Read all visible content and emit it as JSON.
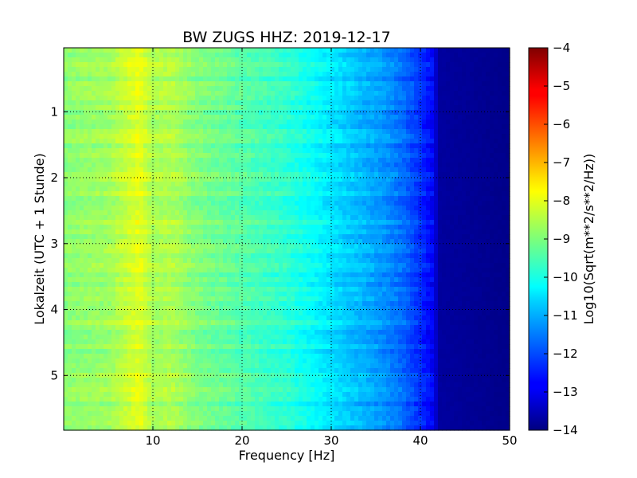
{
  "chart_data": {
    "type": "heatmap",
    "title": "BW ZUGS HHZ: 2019-12-17",
    "xlabel": "Frequency [Hz]",
    "ylabel": "Lokalzeit (UTC + 1 Stunde)",
    "xlim": [
      0,
      50
    ],
    "ylim": [
      5.83,
      0.03
    ],
    "y_inverted": true,
    "xticks": [
      10,
      20,
      30,
      40,
      50
    ],
    "yticks": [
      1,
      2,
      3,
      4,
      5
    ],
    "grid": true,
    "colormap": "jet",
    "colorbar": {
      "label": "Log10(Sqrt(m**2/s**2/Hz))",
      "range": [
        -14,
        -4
      ],
      "ticks": [
        -4,
        -5,
        -6,
        -7,
        -8,
        -9,
        -10,
        -11,
        -12,
        -13,
        -14
      ]
    },
    "value_profile": {
      "frequency_hz": [
        0,
        2,
        5,
        7,
        8.5,
        10,
        12,
        15,
        20,
        25,
        28,
        30,
        33,
        36,
        38,
        40,
        41.5,
        42,
        50
      ],
      "log10_amplitude": [
        -8.9,
        -8.8,
        -8.7,
        -8.3,
        -8.0,
        -8.6,
        -8.5,
        -9.0,
        -9.4,
        -9.8,
        -10.2,
        -10.5,
        -10.9,
        -11.3,
        -11.7,
        -12.3,
        -12.8,
        -13.7,
        -13.9
      ]
    }
  }
}
